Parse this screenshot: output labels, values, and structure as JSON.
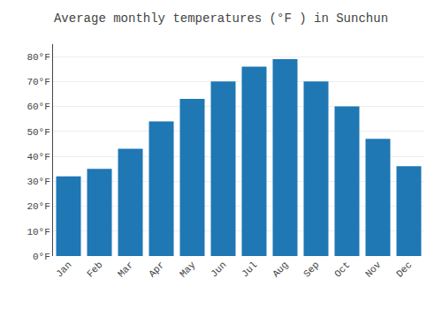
{
  "chart_data": {
    "type": "bar",
    "title": "Average monthly temperatures (°F ) in Sunchun",
    "categories": [
      "Jan",
      "Feb",
      "Mar",
      "Apr",
      "May",
      "Jun",
      "Jul",
      "Aug",
      "Sep",
      "Oct",
      "Nov",
      "Dec"
    ],
    "values": [
      32,
      35,
      43,
      54,
      63,
      70,
      76,
      79,
      70,
      60,
      47,
      36
    ],
    "ylim": [
      0,
      85
    ],
    "yticks": [
      {
        "value": 0,
        "label": "0°F"
      },
      {
        "value": 10,
        "label": "10°F"
      },
      {
        "value": 20,
        "label": "20°F"
      },
      {
        "value": 30,
        "label": "30°F"
      },
      {
        "value": 40,
        "label": "40°F"
      },
      {
        "value": 50,
        "label": "50°F"
      },
      {
        "value": 60,
        "label": "60°F"
      },
      {
        "value": 70,
        "label": "70°F"
      },
      {
        "value": 80,
        "label": "80°F"
      }
    ],
    "grid": true
  }
}
